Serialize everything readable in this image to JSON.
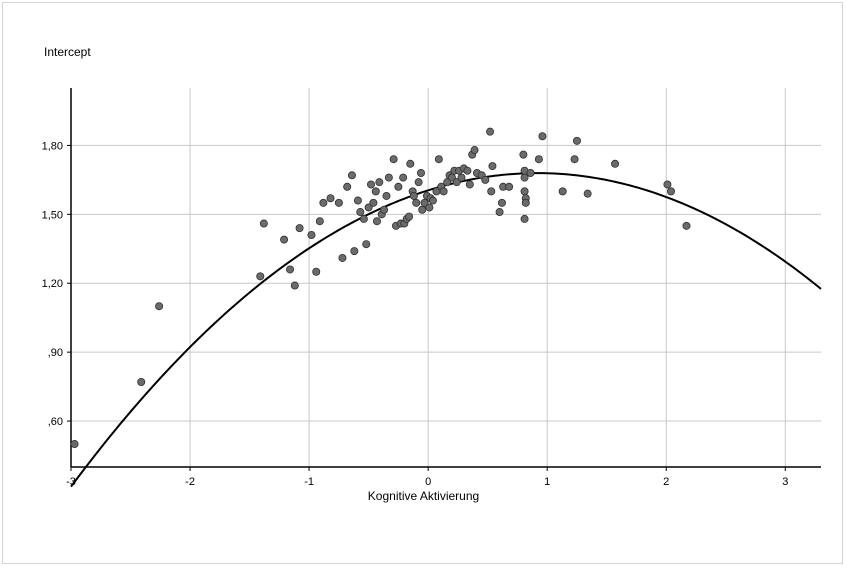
{
  "chart_data": {
    "type": "scatter",
    "title": "",
    "ylabel": "Intercept",
    "xlabel": "Kognitive Aktivierung",
    "xlim": [
      -3,
      3.3
    ],
    "ylim": [
      0.4,
      2.05
    ],
    "x_ticks": [
      -3,
      -2,
      -1,
      0,
      1,
      2,
      3
    ],
    "x_tick_labels": [
      "-3",
      "-2",
      "-1",
      "0",
      "1",
      "2",
      "3"
    ],
    "y_ticks": [
      0.6,
      0.9,
      1.2,
      1.5,
      1.8
    ],
    "y_tick_labels": [
      ",60",
      ",90",
      "1,20",
      "1,50",
      "1,80"
    ],
    "grid": true,
    "point_color": "#6b6b6b",
    "curve_color": "#000000",
    "fit": {
      "type": "quadratic",
      "coefficients": {
        "a": -0.0889,
        "b": 0.1633,
        "c": 1.6044
      },
      "x_range": [
        -3,
        3.3
      ]
    },
    "points": [
      [
        -2.97,
        0.5
      ],
      [
        -2.41,
        0.77
      ],
      [
        -2.26,
        1.1
      ],
      [
        -1.41,
        1.23
      ],
      [
        -1.38,
        1.46
      ],
      [
        -1.21,
        1.39
      ],
      [
        -1.16,
        1.26
      ],
      [
        -1.12,
        1.19
      ],
      [
        -1.08,
        1.44
      ],
      [
        -0.98,
        1.41
      ],
      [
        -0.94,
        1.25
      ],
      [
        -0.91,
        1.47
      ],
      [
        -0.88,
        1.55
      ],
      [
        -0.82,
        1.57
      ],
      [
        -0.75,
        1.55
      ],
      [
        -0.72,
        1.31
      ],
      [
        -0.68,
        1.62
      ],
      [
        -0.64,
        1.67
      ],
      [
        -0.62,
        1.34
      ],
      [
        -0.59,
        1.56
      ],
      [
        -0.57,
        1.51
      ],
      [
        -0.54,
        1.48
      ],
      [
        -0.52,
        1.37
      ],
      [
        -0.5,
        1.53
      ],
      [
        -0.48,
        1.63
      ],
      [
        -0.46,
        1.55
      ],
      [
        -0.44,
        1.6
      ],
      [
        -0.43,
        1.47
      ],
      [
        -0.41,
        1.64
      ],
      [
        -0.39,
        1.5
      ],
      [
        -0.37,
        1.52
      ],
      [
        -0.35,
        1.58
      ],
      [
        -0.33,
        1.66
      ],
      [
        -0.29,
        1.74
      ],
      [
        -0.27,
        1.45
      ],
      [
        -0.25,
        1.62
      ],
      [
        -0.23,
        1.46
      ],
      [
        -0.21,
        1.66
      ],
      [
        -0.2,
        1.46
      ],
      [
        -0.18,
        1.48
      ],
      [
        -0.16,
        1.49
      ],
      [
        -0.15,
        1.72
      ],
      [
        -0.13,
        1.6
      ],
      [
        -0.12,
        1.58
      ],
      [
        -0.1,
        1.55
      ],
      [
        -0.08,
        1.64
      ],
      [
        -0.06,
        1.68
      ],
      [
        -0.05,
        1.52
      ],
      [
        -0.03,
        1.55
      ],
      [
        -0.01,
        1.58
      ],
      [
        0.01,
        1.53
      ],
      [
        0.02,
        1.57
      ],
      [
        0.04,
        1.56
      ],
      [
        0.07,
        1.6
      ],
      [
        0.09,
        1.74
      ],
      [
        0.11,
        1.62
      ],
      [
        0.13,
        1.6
      ],
      [
        0.16,
        1.64
      ],
      [
        0.18,
        1.67
      ],
      [
        0.2,
        1.66
      ],
      [
        0.22,
        1.69
      ],
      [
        0.24,
        1.64
      ],
      [
        0.26,
        1.69
      ],
      [
        0.28,
        1.66
      ],
      [
        0.3,
        1.7
      ],
      [
        0.33,
        1.69
      ],
      [
        0.35,
        1.63
      ],
      [
        0.37,
        1.76
      ],
      [
        0.39,
        1.78
      ],
      [
        0.41,
        1.68
      ],
      [
        0.45,
        1.67
      ],
      [
        0.48,
        1.65
      ],
      [
        0.52,
        1.86
      ],
      [
        0.54,
        1.71
      ],
      [
        0.53,
        1.6
      ],
      [
        0.6,
        1.51
      ],
      [
        0.62,
        1.55
      ],
      [
        0.63,
        1.62
      ],
      [
        0.68,
        1.62
      ],
      [
        0.8,
        1.76
      ],
      [
        0.81,
        1.69
      ],
      [
        0.81,
        1.66
      ],
      [
        0.81,
        1.6
      ],
      [
        0.82,
        1.57
      ],
      [
        0.82,
        1.55
      ],
      [
        0.81,
        1.48
      ],
      [
        0.86,
        1.68
      ],
      [
        0.93,
        1.74
      ],
      [
        0.96,
        1.84
      ],
      [
        1.13,
        1.6
      ],
      [
        1.23,
        1.74
      ],
      [
        1.25,
        1.82
      ],
      [
        1.34,
        1.59
      ],
      [
        1.57,
        1.72
      ],
      [
        2.01,
        1.63
      ],
      [
        2.04,
        1.6
      ],
      [
        2.17,
        1.45
      ]
    ]
  }
}
